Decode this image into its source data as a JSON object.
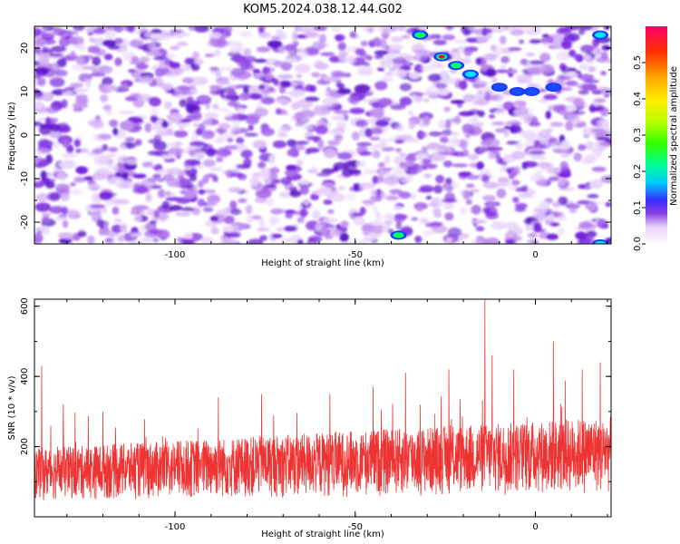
{
  "title": "KOM5.2024.038.12.44.G02",
  "chart_data": [
    {
      "type": "heatmap",
      "xlabel": "Height of straight line (km)",
      "ylabel": "Frequency (Hz)",
      "xlim": [
        -139,
        21
      ],
      "ylim": [
        -25,
        25
      ],
      "x_ticks": [
        "-100",
        "-50",
        "0"
      ],
      "y_ticks": [
        "-20",
        "-10",
        "0",
        "10",
        "20"
      ],
      "colorbar": {
        "label": "Normalized spectral amplitude",
        "range": [
          0,
          0.6
        ],
        "ticks": [
          "0.0",
          "0.1",
          "0.2",
          "0.3",
          "0.4",
          "0.5"
        ]
      },
      "hotspots": [
        {
          "x": -32,
          "y": 23,
          "v": 0.25
        },
        {
          "x": -26,
          "y": 18,
          "v": 0.58
        },
        {
          "x": -22,
          "y": 16,
          "v": 0.22
        },
        {
          "x": -18,
          "y": 14,
          "v": 0.15
        },
        {
          "x": -10,
          "y": 11,
          "v": 0.12
        },
        {
          "x": -5,
          "y": 10,
          "v": 0.1
        },
        {
          "x": -1,
          "y": 10,
          "v": 0.12
        },
        {
          "x": 5,
          "y": 11,
          "v": 0.1
        },
        {
          "x": -38,
          "y": -23,
          "v": 0.22
        },
        {
          "x": 18,
          "y": 23,
          "v": 0.15
        },
        {
          "x": 18,
          "y": -25,
          "v": 0.15
        }
      ]
    },
    {
      "type": "line",
      "xlabel": "Height of straight line (km)",
      "ylabel": "SNR (10 * v/v)",
      "xlim": [
        -139,
        21
      ],
      "ylim": [
        0,
        620
      ],
      "x_ticks": [
        "-100",
        "-50",
        "0"
      ],
      "y_ticks": [
        "200",
        "400",
        "600"
      ],
      "series": [
        {
          "color": "#ee3333"
        }
      ],
      "peaks": [
        {
          "x": -137,
          "y": 430
        },
        {
          "x": -131,
          "y": 320
        },
        {
          "x": -120,
          "y": 300
        },
        {
          "x": -88,
          "y": 340
        },
        {
          "x": -76,
          "y": 350
        },
        {
          "x": -57,
          "y": 350
        },
        {
          "x": -45,
          "y": 370
        },
        {
          "x": -36,
          "y": 410
        },
        {
          "x": -24,
          "y": 420
        },
        {
          "x": -14,
          "y": 620
        },
        {
          "x": -12,
          "y": 460
        },
        {
          "x": -6,
          "y": 420
        },
        {
          "x": 5,
          "y": 500
        },
        {
          "x": 13,
          "y": 420
        },
        {
          "x": 18,
          "y": 440
        }
      ]
    }
  ]
}
